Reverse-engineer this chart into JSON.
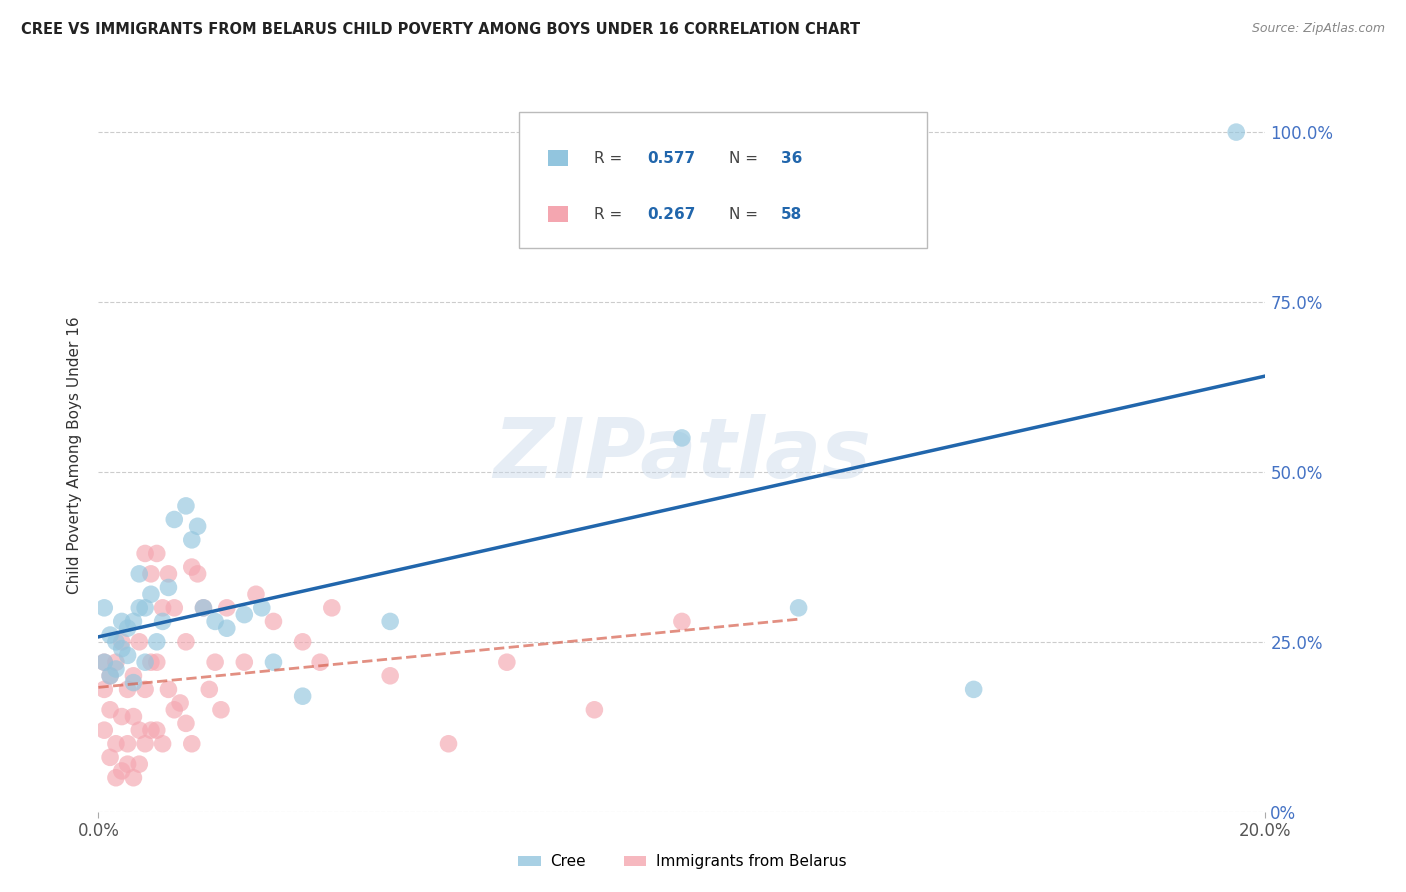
{
  "title": "CREE VS IMMIGRANTS FROM BELARUS CHILD POVERTY AMONG BOYS UNDER 16 CORRELATION CHART",
  "source": "Source: ZipAtlas.com",
  "ylabel": "Child Poverty Among Boys Under 16",
  "cree_R": 0.577,
  "cree_N": 36,
  "belarus_R": 0.267,
  "belarus_N": 58,
  "cree_color": "#92c5de",
  "belarus_color": "#f4a6b0",
  "cree_line_color": "#2166ac",
  "belarus_line_color": "#d6604d",
  "text_color_blue": "#2166ac",
  "text_color_dark": "#444444",
  "ytick_color": "#4472c4",
  "background_color": "#ffffff",
  "grid_color": "#cccccc",
  "watermark": "ZIPatlas",
  "xlim": [
    0.0,
    0.2
  ],
  "ylim": [
    0.0,
    1.05
  ],
  "ytick_values": [
    0.0,
    0.25,
    0.5,
    0.75,
    1.0
  ],
  "ytick_labels": [
    "0%",
    "25.0%",
    "50.0%",
    "75.0%",
    "100.0%"
  ],
  "xtick_values": [
    0.0,
    0.2
  ],
  "xtick_labels": [
    "0.0%",
    "20.0%"
  ],
  "cree_x": [
    0.001,
    0.001,
    0.002,
    0.002,
    0.003,
    0.003,
    0.004,
    0.004,
    0.005,
    0.005,
    0.006,
    0.006,
    0.007,
    0.007,
    0.008,
    0.008,
    0.009,
    0.01,
    0.011,
    0.012,
    0.013,
    0.015,
    0.016,
    0.017,
    0.018,
    0.02,
    0.022,
    0.025,
    0.028,
    0.03,
    0.035,
    0.05,
    0.1,
    0.12,
    0.15,
    0.195
  ],
  "cree_y": [
    0.22,
    0.3,
    0.2,
    0.26,
    0.21,
    0.25,
    0.24,
    0.28,
    0.23,
    0.27,
    0.19,
    0.28,
    0.3,
    0.35,
    0.22,
    0.3,
    0.32,
    0.25,
    0.28,
    0.33,
    0.43,
    0.45,
    0.4,
    0.42,
    0.3,
    0.28,
    0.27,
    0.29,
    0.3,
    0.22,
    0.17,
    0.28,
    0.55,
    0.3,
    0.18,
    1.0
  ],
  "belarus_x": [
    0.001,
    0.001,
    0.001,
    0.002,
    0.002,
    0.002,
    0.003,
    0.003,
    0.003,
    0.004,
    0.004,
    0.004,
    0.005,
    0.005,
    0.005,
    0.006,
    0.006,
    0.006,
    0.007,
    0.007,
    0.007,
    0.008,
    0.008,
    0.008,
    0.009,
    0.009,
    0.009,
    0.01,
    0.01,
    0.01,
    0.011,
    0.011,
    0.012,
    0.012,
    0.013,
    0.013,
    0.014,
    0.015,
    0.015,
    0.016,
    0.016,
    0.017,
    0.018,
    0.019,
    0.02,
    0.021,
    0.022,
    0.025,
    0.027,
    0.03,
    0.035,
    0.038,
    0.04,
    0.05,
    0.06,
    0.07,
    0.085,
    0.1
  ],
  "belarus_y": [
    0.12,
    0.18,
    0.22,
    0.08,
    0.15,
    0.2,
    0.05,
    0.1,
    0.22,
    0.06,
    0.14,
    0.25,
    0.07,
    0.1,
    0.18,
    0.05,
    0.14,
    0.2,
    0.07,
    0.12,
    0.25,
    0.1,
    0.18,
    0.38,
    0.12,
    0.22,
    0.35,
    0.12,
    0.22,
    0.38,
    0.1,
    0.3,
    0.18,
    0.35,
    0.15,
    0.3,
    0.16,
    0.13,
    0.25,
    0.1,
    0.36,
    0.35,
    0.3,
    0.18,
    0.22,
    0.15,
    0.3,
    0.22,
    0.32,
    0.28,
    0.25,
    0.22,
    0.3,
    0.2,
    0.1,
    0.22,
    0.15,
    0.28
  ]
}
